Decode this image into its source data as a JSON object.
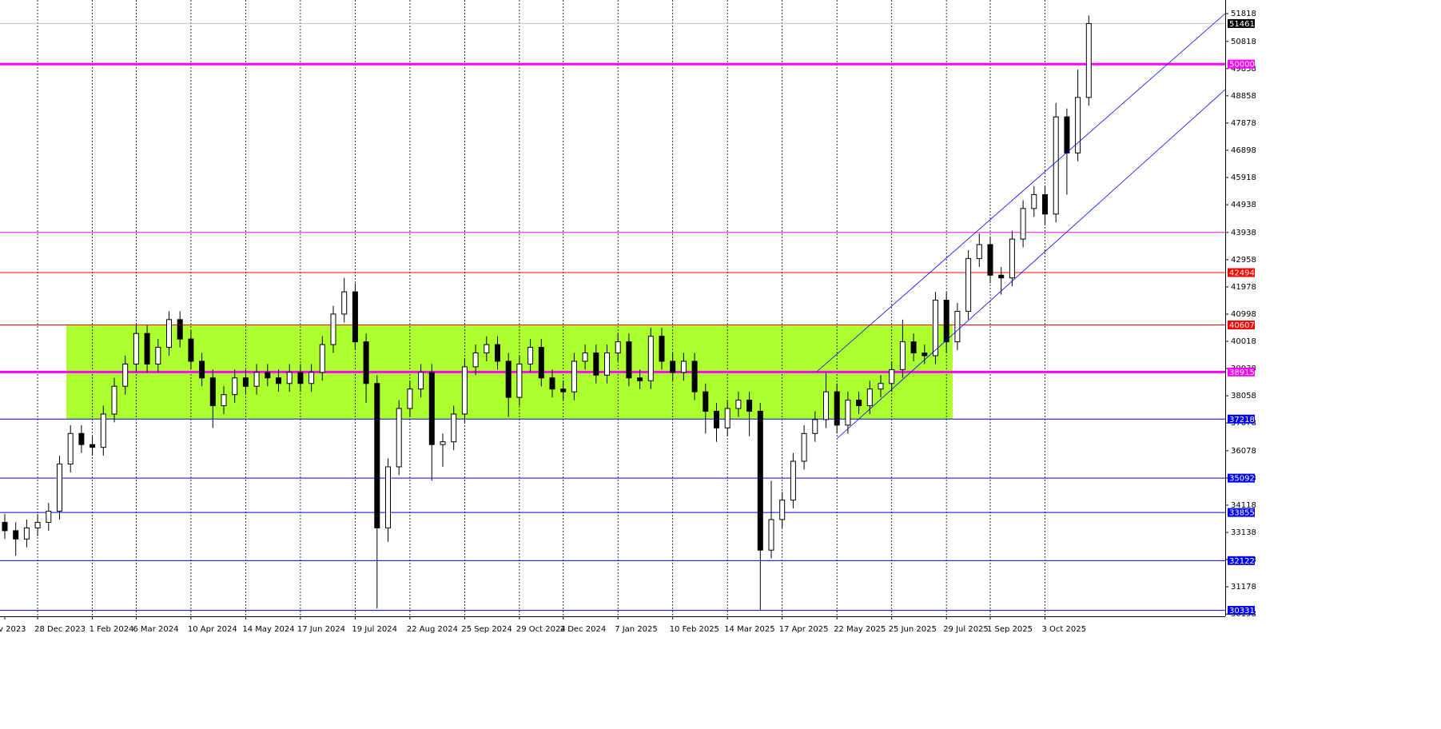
{
  "chart_data": {
    "type": "candlestick",
    "categories": [
      "v 2023",
      null,
      null,
      "28 Dec 2023",
      null,
      null,
      null,
      null,
      "1 Feb 2024",
      null,
      null,
      null,
      "6 Mar 2024",
      null,
      null,
      null,
      null,
      "10 Apr 2024",
      null,
      null,
      null,
      null,
      "14 May 2024",
      null,
      null,
      null,
      null,
      "17 Jun 2024",
      null,
      null,
      null,
      null,
      "19 Jul 2024",
      null,
      null,
      null,
      null,
      "22 Aug 2024",
      null,
      null,
      null,
      null,
      "25 Sep 2024",
      null,
      null,
      null,
      null,
      "29 Oct 2024",
      null,
      null,
      null,
      "2 Dec 2024",
      null,
      null,
      null,
      null,
      "7 Jan 2025",
      null,
      null,
      null,
      null,
      "10 Feb 2025",
      null,
      null,
      null,
      null,
      "14 Mar 2025",
      null,
      null,
      null,
      null,
      "17 Apr 2025",
      null,
      null,
      null,
      null,
      "22 May 2025",
      null,
      null,
      null,
      null,
      "25 Jun 2025",
      null,
      null,
      null,
      null,
      "29 Jul 2025",
      null,
      null,
      null,
      "1 Sep 2025",
      null,
      null,
      null,
      null,
      "3 Oct 2025",
      null,
      null,
      null,
      null
    ],
    "open": [
      33500,
      33200,
      32900,
      33300,
      33500,
      33900,
      35600,
      36700,
      36300,
      36200,
      37400,
      38400,
      39200,
      40300,
      39200,
      39800,
      40800,
      40100,
      39300,
      38700,
      37700,
      38100,
      38700,
      38400,
      38900,
      38700,
      38500,
      38900,
      38500,
      38900,
      39900,
      41000,
      41800,
      40000,
      38500,
      33300,
      35500,
      37600,
      38300,
      38900,
      36300,
      36400,
      37400,
      39100,
      39600,
      39900,
      39300,
      38000,
      39200,
      39800,
      38700,
      38300,
      38200,
      39300,
      39600,
      38800,
      39600,
      40000,
      38700,
      38600,
      40200,
      39300,
      38900,
      39300,
      38200,
      37500,
      36900,
      37600,
      37900,
      37500,
      32500,
      33600,
      34300,
      35700,
      36700,
      37200,
      38200,
      37000,
      37900,
      37700,
      38300,
      38500,
      39000,
      40000,
      39600,
      39500,
      41500,
      40000,
      41100,
      43000,
      43500,
      42400,
      42300,
      43700,
      44800,
      45300,
      44600,
      48100,
      46800,
      48800
    ],
    "high": [
      33800,
      33500,
      33600,
      33800,
      34200,
      35900,
      37000,
      37000,
      36600,
      37700,
      38700,
      39500,
      40600,
      40600,
      40100,
      41100,
      41100,
      40400,
      39600,
      39000,
      38400,
      39000,
      39000,
      39200,
      39200,
      39000,
      39200,
      39200,
      39200,
      40200,
      41300,
      42300,
      42100,
      40300,
      38800,
      35800,
      37900,
      38600,
      39200,
      39200,
      36700,
      37700,
      39400,
      39900,
      40200,
      40200,
      39600,
      39500,
      40100,
      40100,
      39000,
      38600,
      39600,
      39900,
      39900,
      39900,
      40300,
      40300,
      39000,
      40500,
      40500,
      39600,
      39600,
      39600,
      38500,
      37800,
      37900,
      38200,
      38200,
      37800,
      35000,
      34600,
      36000,
      37000,
      37500,
      38900,
      38500,
      38200,
      38200,
      38600,
      38800,
      39300,
      40800,
      40300,
      39900,
      41800,
      41800,
      41400,
      43300,
      43900,
      43800,
      42700,
      44000,
      45100,
      45600,
      45600,
      48600,
      48400,
      49800,
      51750
    ],
    "low": [
      32900,
      32300,
      32600,
      33000,
      33200,
      33600,
      35300,
      36000,
      35900,
      35900,
      37100,
      38100,
      38900,
      38900,
      38900,
      39500,
      39800,
      39000,
      38400,
      36900,
      37400,
      37800,
      38100,
      38100,
      38400,
      38200,
      38200,
      38200,
      38200,
      38600,
      39600,
      40700,
      39700,
      37800,
      30400,
      32800,
      35200,
      37300,
      38000,
      35000,
      35500,
      36100,
      37100,
      38800,
      39300,
      39000,
      37300,
      37700,
      38900,
      38400,
      38000,
      37900,
      37900,
      39000,
      38500,
      38500,
      39300,
      38400,
      38300,
      38300,
      39000,
      38600,
      38600,
      37900,
      36700,
      36400,
      36600,
      37300,
      36600,
      30331,
      32200,
      33300,
      34000,
      35400,
      36400,
      36900,
      36700,
      36700,
      37400,
      37400,
      38000,
      38200,
      38700,
      39300,
      39200,
      39200,
      39600,
      39700,
      40800,
      42700,
      42100,
      41700,
      42000,
      43400,
      44500,
      44200,
      44300,
      45300,
      46500,
      48500
    ],
    "close": [
      33200,
      32900,
      33300,
      33500,
      33900,
      35600,
      36700,
      36300,
      36200,
      37400,
      38400,
      39200,
      40300,
      39200,
      39800,
      40800,
      40100,
      39300,
      38700,
      37700,
      38100,
      38700,
      38400,
      38900,
      38700,
      38500,
      38900,
      38500,
      38900,
      39900,
      41000,
      41800,
      40000,
      38500,
      33300,
      35500,
      37600,
      38300,
      38900,
      36300,
      36400,
      37400,
      39100,
      39600,
      39900,
      39300,
      38000,
      39200,
      39800,
      38700,
      38300,
      38200,
      39300,
      39600,
      38800,
      39600,
      40000,
      38700,
      38600,
      40200,
      39300,
      38900,
      39300,
      38200,
      37500,
      36900,
      37600,
      37900,
      37500,
      32500,
      33600,
      34300,
      35700,
      36700,
      37200,
      38200,
      37000,
      37900,
      37700,
      38300,
      38500,
      39000,
      40000,
      39600,
      39500,
      41500,
      40000,
      41100,
      43000,
      43500,
      42400,
      42300,
      43700,
      44800,
      45300,
      44600,
      48100,
      46800,
      48800,
      51461
    ],
    "bull_color": "#ffffff",
    "bear_color": "#000000",
    "ylim": [
      30117,
      52308
    ],
    "yticks": [
      51818,
      50818,
      49838,
      48858,
      47878,
      46898,
      45918,
      44938,
      43938,
      42958,
      41978,
      40998,
      40018,
      39038,
      38058,
      37078,
      36078,
      35098,
      34118,
      33138,
      32158,
      31178,
      30198
    ],
    "zone": {
      "low": 37218,
      "high": 40607,
      "color": "#adff2f"
    },
    "levels": [
      {
        "value": 51461,
        "color": "#c0c0c0",
        "thick": false,
        "tag": true,
        "tag_color": "#000000"
      },
      {
        "value": 50000,
        "color": "#ff00ff",
        "thick": true,
        "tag": true,
        "tag_color": "#ff00ff"
      },
      {
        "value": 43938,
        "color": "#ff00ff",
        "thick": false,
        "tag": false,
        "tag_color": "#ff00ff"
      },
      {
        "value": 42494,
        "color": "#ff0000",
        "thick": false,
        "tag": true,
        "tag_color": "#ff0000"
      },
      {
        "value": 40607,
        "color": "#ff0000",
        "thick": false,
        "tag": true,
        "tag_color": "#ff0000"
      },
      {
        "value": 38915,
        "color": "#ff00ff",
        "thick": true,
        "tag": true,
        "tag_color": "#ff00ff"
      },
      {
        "value": 37218,
        "color": "#0000ff",
        "thick": false,
        "tag": true,
        "tag_color": "#0000ff"
      },
      {
        "value": 35092,
        "color": "#0000ff",
        "thick": false,
        "tag": true,
        "tag_color": "#0000ff"
      },
      {
        "value": 33855,
        "color": "#0000ff",
        "thick": false,
        "tag": true,
        "tag_color": "#0000ff"
      },
      {
        "value": 32122,
        "color": "#0000ff",
        "thick": false,
        "tag": true,
        "tag_color": "#0000ff"
      },
      {
        "value": 30331,
        "color": "#0000ff",
        "thick": false,
        "tag": true,
        "tag_color": "#0000ff"
      }
    ]
  }
}
